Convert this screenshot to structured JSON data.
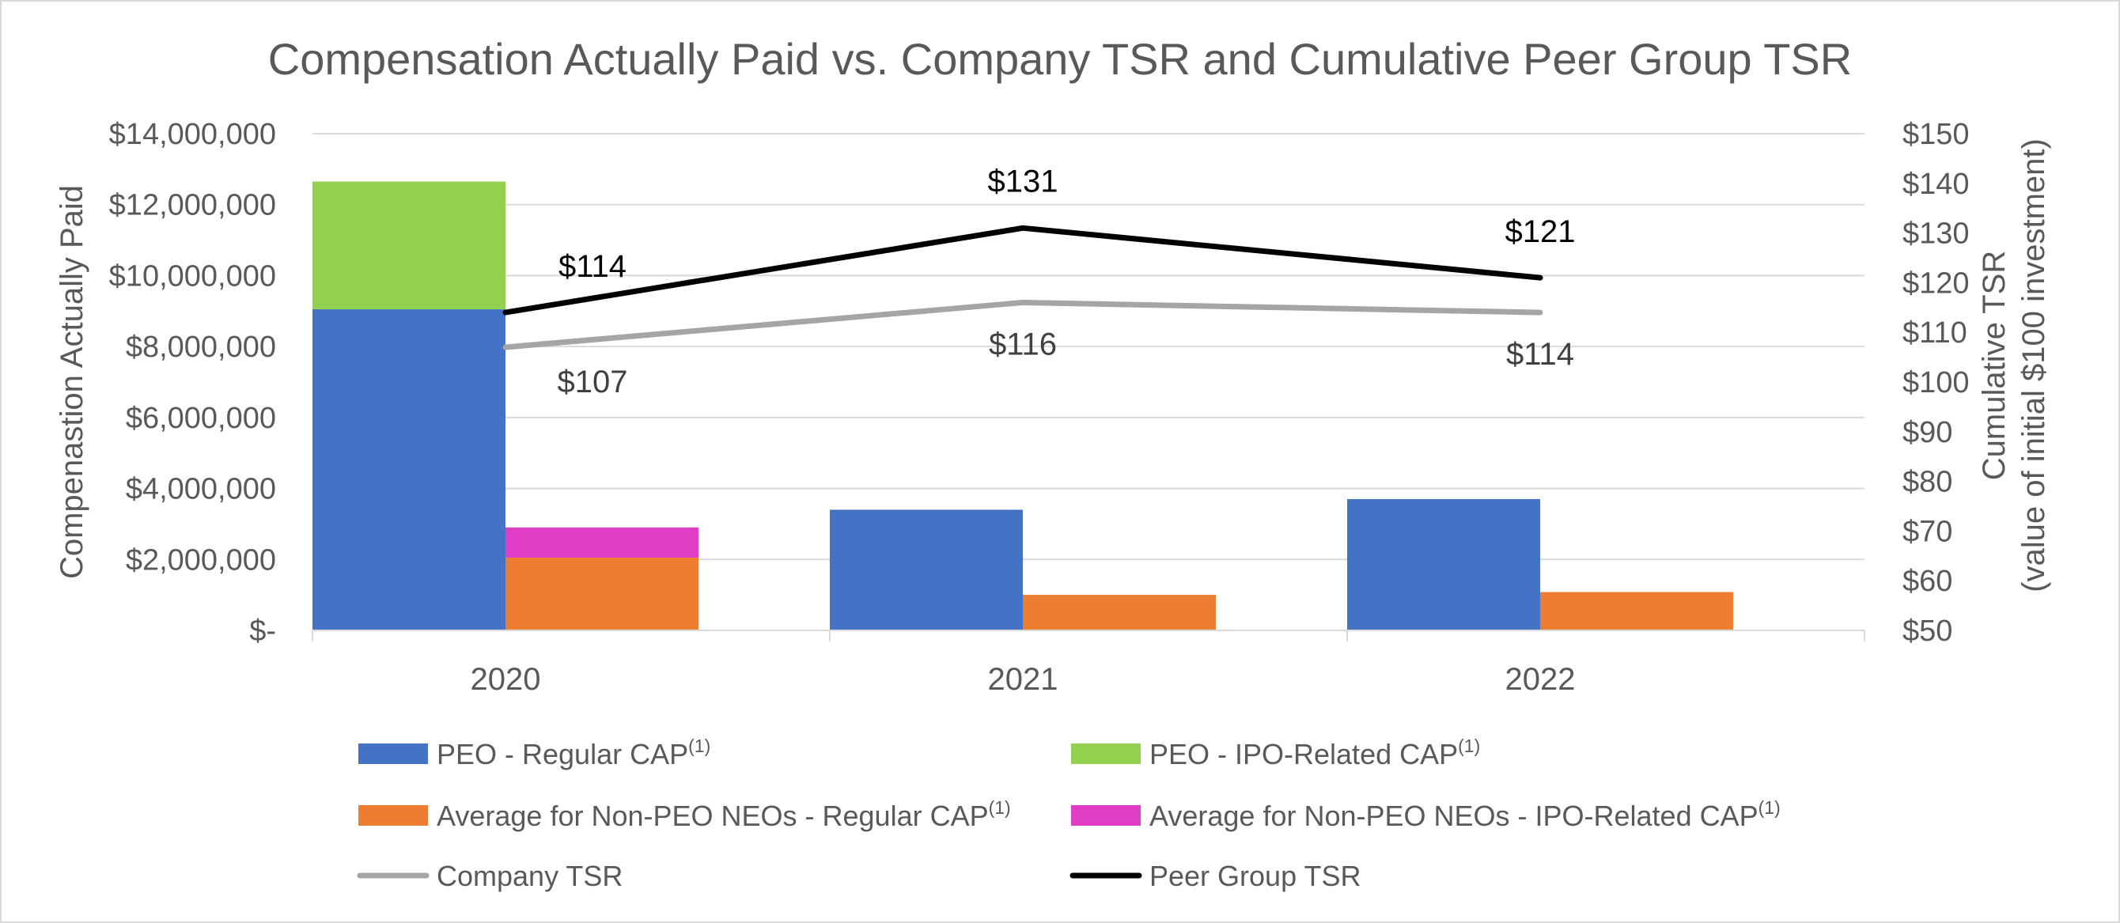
{
  "chart_data": {
    "type": "bar",
    "title": "Compensation Actually Paid vs. Company TSR and Cumulative Peer Group TSR",
    "categories": [
      "2020",
      "2021",
      "2022"
    ],
    "y_left": {
      "label": "Compenastion Actually Paid",
      "ylim": [
        0,
        14000000
      ],
      "ticks": [
        0,
        2000000,
        4000000,
        6000000,
        8000000,
        10000000,
        12000000,
        14000000
      ],
      "tick_labels": [
        "$-",
        "$2,000,000",
        "$4,000,000",
        "$6,000,000",
        "$8,000,000",
        "$10,000,000",
        "$12,000,000",
        "$14,000,000"
      ]
    },
    "y_right": {
      "label_line1": "Cumulative TSR",
      "label_line2": "(value of initial $100 investment)",
      "ylim": [
        50,
        150
      ],
      "ticks": [
        50,
        60,
        70,
        80,
        90,
        100,
        110,
        120,
        130,
        140,
        150
      ],
      "tick_labels": [
        "$50",
        "$60",
        "$70",
        "$80",
        "$90",
        "$100",
        "$110",
        "$120",
        "$130",
        "$140",
        "$150"
      ]
    },
    "bar_groups": [
      {
        "stack": "peo",
        "series": [
          {
            "name": "PEO - Regular CAP",
            "color": "#4472c4",
            "values": [
              9050000,
              3400000,
              3700000
            ]
          },
          {
            "name": "PEO - IPO-Related CAP",
            "color": "#92d050",
            "values": [
              3600000,
              0,
              0
            ]
          }
        ]
      },
      {
        "stack": "neo",
        "series": [
          {
            "name": "Average for Non-PEO NEOs - Regular CAP",
            "color": "#ed7d31",
            "values": [
              2050000,
              1000000,
              1080000
            ]
          },
          {
            "name": "Average for Non-PEO NEOs - IPO-Related CAP",
            "color": "#e03cc5",
            "values": [
              850000,
              0,
              0
            ]
          }
        ]
      }
    ],
    "lines": [
      {
        "name": "Company TSR",
        "color": "#a5a5a5",
        "values": [
          107,
          116,
          114
        ],
        "labels": [
          "$107",
          "$116",
          "$114"
        ]
      },
      {
        "name": "Peer Group TSR",
        "color": "#000000",
        "values": [
          114,
          131,
          121
        ],
        "labels": [
          "$114",
          "$131",
          "$121"
        ]
      }
    ],
    "legend": [
      {
        "label": "PEO - Regular CAP",
        "sup": "(1)",
        "kind": "bar",
        "color": "#4472c4"
      },
      {
        "label": "PEO - IPO-Related CAP",
        "sup": "(1)",
        "kind": "bar",
        "color": "#92d050"
      },
      {
        "label": "Average for Non-PEO NEOs - Regular CAP",
        "sup": "(1)",
        "kind": "bar",
        "color": "#ed7d31"
      },
      {
        "label": "Average for Non-PEO NEOs - IPO-Related CAP",
        "sup": "(1)",
        "kind": "bar",
        "color": "#e03cc5"
      },
      {
        "label": "Company TSR",
        "sup": "",
        "kind": "line",
        "color": "#a5a5a5"
      },
      {
        "label": "Peer Group TSR",
        "sup": "",
        "kind": "line",
        "color": "#000000"
      }
    ],
    "legend_position": "bottom",
    "grid": true
  }
}
